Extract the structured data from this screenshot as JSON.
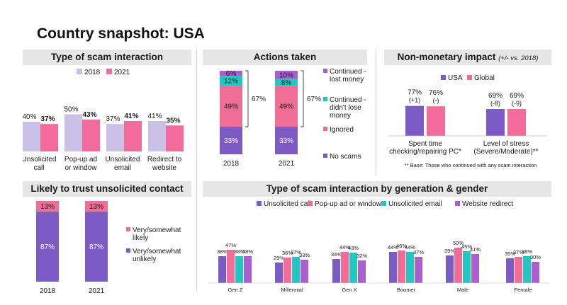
{
  "page": {
    "title": "Country snapshot: USA"
  },
  "colors": {
    "lavender": "#c9c1e6",
    "pink": "#f26b9a",
    "purple": "#7c5cc4",
    "teal": "#22c7c4",
    "violet": "#a95fcf",
    "ignored": "#ef6e95"
  },
  "panels": {
    "type_of_scam": {
      "title": "Type of scam interaction",
      "legend": [
        "2018",
        "2021"
      ],
      "categories": [
        "Unsolicited call",
        "Pop-up ad or window",
        "Unsolicited email",
        "Redirect to website"
      ],
      "category_lines": [
        [
          "Unsolicited",
          "call"
        ],
        [
          "Pop-up ad",
          "or window"
        ],
        [
          "Unsolicited",
          "email"
        ],
        [
          "Redirect to",
          "website"
        ]
      ],
      "series": [
        {
          "name": "2018",
          "values": [
            40,
            50,
            37,
            41
          ]
        },
        {
          "name": "2021",
          "values": [
            37,
            43,
            41,
            35
          ]
        }
      ],
      "labels_2018": [
        "40%",
        "50%",
        "37%",
        "41%"
      ],
      "labels_2021": [
        "37%",
        "43%",
        "41%",
        "35%"
      ]
    },
    "actions_taken": {
      "title": "Actions taken",
      "years": [
        "2018",
        "2021"
      ],
      "segments": [
        {
          "name": "No scams",
          "values": [
            33,
            33
          ],
          "labels": [
            "33%",
            "33%"
          ]
        },
        {
          "name": "Ignored",
          "values": [
            49,
            49
          ],
          "labels": [
            "49%",
            "49%"
          ]
        },
        {
          "name": "Continued - didn't lose money",
          "values": [
            12,
            8
          ],
          "labels": [
            "12%",
            "8%"
          ]
        },
        {
          "name": "Continued - lost money",
          "values": [
            6,
            10
          ],
          "labels": [
            "6%",
            "10%"
          ]
        }
      ],
      "legend_lines": [
        [
          "Continued -",
          "lost money"
        ],
        [
          "Continued -",
          "didn't lose",
          "money"
        ],
        [
          "Ignored"
        ],
        [
          "No scams"
        ]
      ],
      "bracket_labels": [
        "67%",
        "67%"
      ]
    },
    "non_monetary": {
      "title": "Non-monetary impact",
      "title_note": "(+/- vs. 2018)",
      "legend": [
        "USA",
        "Global"
      ],
      "groups": [
        {
          "lines": [
            "Spent time",
            "checking/repairing PC*"
          ],
          "usa": 77,
          "global": 76,
          "usa_label": "77%",
          "global_label": "76%",
          "usa_delta": "(+1)",
          "global_delta": "(-)"
        },
        {
          "lines": [
            "Level of stress",
            "(Severe/Moderate)**"
          ],
          "usa": 69,
          "global": 69,
          "usa_label": "69%",
          "global_label": "69%",
          "usa_delta": "(-8)",
          "global_delta": "(-9)"
        }
      ],
      "footnote": "** Base: Those who continued with any scam interaction"
    },
    "trust": {
      "title": "Likely to trust unsolicited contact",
      "years": [
        "2018",
        "2021"
      ],
      "segments": [
        {
          "name": "Very/somewhat unlikely",
          "values": [
            87,
            87
          ],
          "labels": [
            "87%",
            "87%"
          ]
        },
        {
          "name": "Very/somewhat likely",
          "values": [
            13,
            13
          ],
          "labels": [
            "13%",
            "13%"
          ]
        }
      ],
      "legend_lines": [
        [
          "Very/somewhat",
          "likely"
        ],
        [
          "Very/somewhat",
          "unlikely"
        ]
      ]
    },
    "by_generation": {
      "title": "Type of scam interaction by generation & gender",
      "legend": [
        "Unsolicited call",
        "Pop-up ad or window",
        "Unsolicited email",
        "Website redirect"
      ],
      "groups": [
        "Gen Z",
        "Millennial",
        "Gen X",
        "Boomer",
        "Male",
        "Female"
      ],
      "values": [
        [
          38,
          47,
          38,
          38
        ],
        [
          29,
          36,
          37,
          33
        ],
        [
          34,
          44,
          43,
          32
        ],
        [
          44,
          46,
          44,
          37
        ],
        [
          39,
          50,
          45,
          41
        ],
        [
          35,
          37,
          38,
          30
        ]
      ],
      "labels": [
        [
          "38%",
          "47%",
          "38%",
          "38%"
        ],
        [
          "29%",
          "36%",
          "37%",
          "33%"
        ],
        [
          "34%",
          "44%",
          "43%",
          "32%"
        ],
        [
          "44%",
          "46%",
          "44%",
          "37%"
        ],
        [
          "39%",
          "50%",
          "45%",
          "41%"
        ],
        [
          "35%",
          "37%",
          "38%",
          "30%"
        ]
      ]
    }
  },
  "chart_data": [
    {
      "type": "bar",
      "title": "Type of scam interaction",
      "categories": [
        "Unsolicited call",
        "Pop-up ad or window",
        "Unsolicited email",
        "Redirect to website"
      ],
      "series": [
        {
          "name": "2018",
          "values": [
            40,
            50,
            37,
            41
          ]
        },
        {
          "name": "2021",
          "values": [
            37,
            43,
            41,
            35
          ]
        }
      ]
    },
    {
      "type": "bar",
      "title": "Actions taken",
      "categories": [
        "2018",
        "2021"
      ],
      "series": [
        {
          "name": "No scams",
          "values": [
            33,
            33
          ]
        },
        {
          "name": "Ignored",
          "values": [
            49,
            49
          ]
        },
        {
          "name": "Continued - didn't lose money",
          "values": [
            12,
            8
          ]
        },
        {
          "name": "Continued - lost money",
          "values": [
            6,
            10
          ]
        }
      ]
    },
    {
      "type": "bar",
      "title": "Non-monetary impact",
      "categories": [
        "Spent time checking/repairing PC*",
        "Level of stress (Severe/Moderate)**"
      ],
      "series": [
        {
          "name": "USA",
          "values": [
            77,
            69
          ]
        },
        {
          "name": "Global",
          "values": [
            76,
            69
          ]
        }
      ]
    },
    {
      "type": "bar",
      "title": "Likely to trust unsolicited contact",
      "categories": [
        "2018",
        "2021"
      ],
      "series": [
        {
          "name": "Very/somewhat unlikely",
          "values": [
            87,
            87
          ]
        },
        {
          "name": "Very/somewhat likely",
          "values": [
            13,
            13
          ]
        }
      ]
    },
    {
      "type": "bar",
      "title": "Type of scam interaction by generation & gender",
      "categories": [
        "Gen Z",
        "Millennial",
        "Gen X",
        "Boomer",
        "Male",
        "Female"
      ],
      "series": [
        {
          "name": "Unsolicited call",
          "values": [
            38,
            29,
            34,
            44,
            39,
            35
          ]
        },
        {
          "name": "Pop-up ad or window",
          "values": [
            47,
            36,
            44,
            46,
            50,
            37
          ]
        },
        {
          "name": "Unsolicited email",
          "values": [
            38,
            37,
            43,
            44,
            45,
            38
          ]
        },
        {
          "name": "Website redirect",
          "values": [
            38,
            33,
            32,
            37,
            41,
            30
          ]
        }
      ]
    }
  ]
}
